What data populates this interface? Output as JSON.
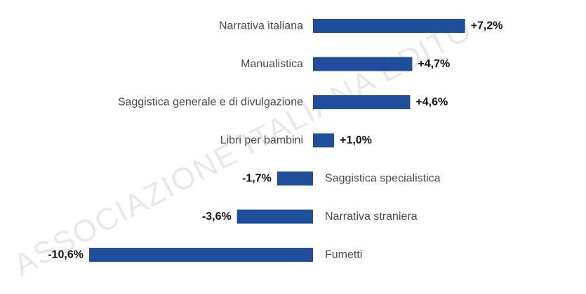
{
  "watermark": {
    "text": "ASSOCIAZIONE ITALIANA EDITO",
    "color": "#e9e9e9"
  },
  "chart_data": {
    "type": "bar",
    "orientation": "horizontal",
    "bar_color": "#1f4e9a",
    "categories": [
      "Narrativa italiana",
      "Manualistica",
      "Saggistica generale e di divulgazione",
      "Libri per bambini",
      "Saggistica specialistica",
      "Narrativa straniera",
      "Fumetti"
    ],
    "values": [
      7.2,
      4.7,
      4.6,
      1.0,
      -1.7,
      -3.6,
      -10.6
    ],
    "value_labels": [
      "+7,2%",
      "+4,7%",
      "+4,6%",
      "+1,0%",
      "-1,7%",
      "-3,6%",
      "-10,6%"
    ],
    "xlim": [
      -10.6,
      7.2
    ],
    "grid": false,
    "legend": "none"
  }
}
